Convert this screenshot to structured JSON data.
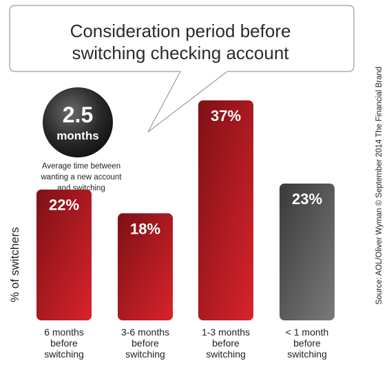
{
  "chart_data": {
    "type": "bar",
    "title_lines": [
      "Consideration period before",
      "switching checking account"
    ],
    "ylabel": "% of switchers",
    "categories": [
      [
        "6 months",
        "before",
        "switching"
      ],
      [
        "3-6 months",
        "before",
        "switching"
      ],
      [
        "1-3 months",
        "before",
        "switching"
      ],
      [
        "< 1 month",
        "before",
        "switching"
      ]
    ],
    "values": [
      22,
      18,
      37,
      23
    ],
    "value_labels": [
      "22%",
      "18%",
      "37%",
      "23%"
    ],
    "bar_colors": [
      "#b81d24",
      "#b81d24",
      "#b81d24",
      "#555555"
    ],
    "ylim": [
      0,
      40
    ],
    "grid": false,
    "legend": "none"
  },
  "highlight": {
    "value": "2.5",
    "unit": "months",
    "description_lines": [
      "Average time between",
      "wanting a new account",
      "and switching"
    ]
  },
  "source": "Source: AOL/Oliver Wyman © September 2014 The Financial Brand"
}
